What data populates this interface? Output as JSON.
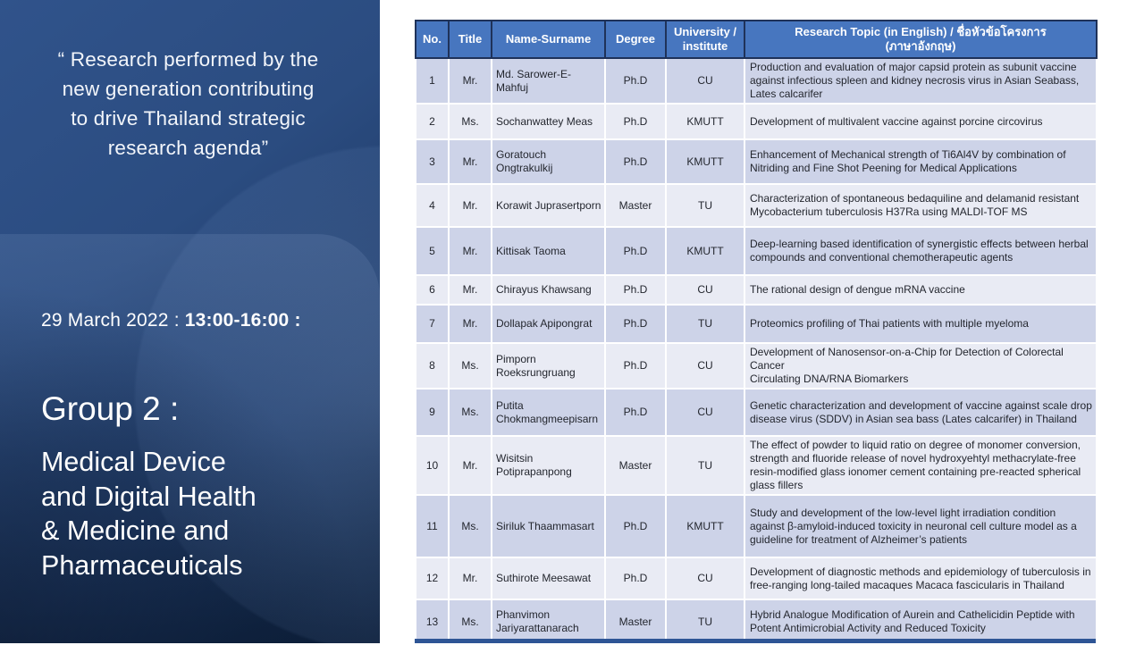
{
  "left_panel": {
    "quote": "“ Research performed by the\nnew generation contributing\nto drive Thailand strategic\nresearch agenda”",
    "date_prefix": "29 March 2022 : ",
    "date_time_bold": "13:00-16:00 :",
    "group_title": "Group 2 :",
    "group_subtitle": "Medical Device\nand Digital Health\n& Medicine and\nPharmaceuticals"
  },
  "table": {
    "headers": [
      "No.",
      "Title",
      "Name-Surname",
      "Degree",
      "University /\ninstitute",
      "Research Topic (in English) / ชื่อหัวข้อโครงการ\n(ภาษาอังกฤษ)"
    ],
    "rows": [
      {
        "no": "1",
        "title": "Mr.",
        "name": "Md. Sarower-E-Mahfuj",
        "degree": "Ph.D",
        "university": "CU",
        "topic": "Production and evaluation of major capsid protein as subunit vaccine against infectious spleen and kidney necrosis virus in Asian Seabass, Lates calcarifer"
      },
      {
        "no": "2",
        "title": "Ms.",
        "name": "Sochanwattey Meas",
        "degree": "Ph.D",
        "university": "KMUTT",
        "topic": "Development of multivalent vaccine against porcine circovirus"
      },
      {
        "no": "3",
        "title": "Mr.",
        "name": "Goratouch Ongtrakulkij",
        "degree": "Ph.D",
        "university": "KMUTT",
        "topic": "Enhancement of Mechanical strength of Ti6Al4V by combination of Nitriding and Fine Shot Peening for Medical Applications"
      },
      {
        "no": "4",
        "title": "Mr.",
        "name": "Korawit Juprasertporn",
        "degree": "Master",
        "university": "TU",
        "topic": "Characterization of spontaneous bedaquiline and delamanid resistant Mycobacterium tuberculosis H37Ra using MALDI-TOF MS"
      },
      {
        "no": "5",
        "title": "Mr.",
        "name": "Kittisak Taoma",
        "degree": "Ph.D",
        "university": "KMUTT",
        "topic": "Deep-learning based identification of synergistic effects between herbal compounds and conventional chemotherapeutic agents"
      },
      {
        "no": "6",
        "title": "Mr.",
        "name": "Chirayus Khawsang",
        "degree": "Ph.D",
        "university": "CU",
        "topic": "The rational design of dengue mRNA vaccine"
      },
      {
        "no": "7",
        "title": "Mr.",
        "name": "Dollapak Apipongrat",
        "degree": "Ph.D",
        "university": "TU",
        "topic": "Proteomics profiling of Thai patients with multiple myeloma"
      },
      {
        "no": "8",
        "title": "Ms.",
        "name": "Pimporn Roeksrungruang",
        "degree": "Ph.D",
        "university": "CU",
        "topic": "Development of Nanosensor-on-a-Chip for Detection of Colorectal Cancer\nCirculating DNA/RNA Biomarkers"
      },
      {
        "no": "9",
        "title": "Ms.",
        "name": "Putita Chokmangmeepisarn",
        "degree": "Ph.D",
        "university": "CU",
        "topic": "Genetic characterization and development of vaccine against scale drop disease virus (SDDV) in Asian sea bass (Lates calcarifer) in Thailand"
      },
      {
        "no": "10",
        "title": "Mr.",
        "name": "Wisitsin Potiprapanpong",
        "degree": "Master",
        "university": "TU",
        "topic": "The effect of powder to liquid ratio on degree of monomer conversion, strength and fluoride release of novel hydroxyehtyl methacrylate-free resin-modified glass ionomer cement containing pre-reacted spherical glass fillers"
      },
      {
        "no": "11",
        "title": "Ms.",
        "name": "Siriluk Thaammasart",
        "degree": "Ph.D",
        "university": "KMUTT",
        "topic": "Study and development of the low-level light irradiation condition against β-amyloid-induced toxicity in neuronal cell culture model as a guideline for treatment of Alzheimer’s patients"
      },
      {
        "no": "12",
        "title": "Mr.",
        "name": "Suthirote Meesawat",
        "degree": "Ph.D",
        "university": "CU",
        "topic": "Development of diagnostic methods and epidemiology of tuberculosis in free-ranging long-tailed macaques Macaca fascicularis in Thailand"
      },
      {
        "no": "13",
        "title": "Ms.",
        "name": "Phanvimon Jariyarattanarach",
        "degree": "Master",
        "university": "TU",
        "topic": "Hybrid Analogue Modification of Aurein and Cathelicidin Peptide with Potent Antimicrobial Activity and Reduced Toxicity"
      }
    ]
  },
  "colors": {
    "header_bg": "#4776BF",
    "header_border": "#1F3259",
    "row_odd": "#CDD3E8",
    "row_even": "#E9EBF4",
    "panel_top": "#30538b",
    "panel_bottom": "#0b1c36",
    "bottom_strip": "#2E5595",
    "text_on_panel": "#ffffff",
    "body_text": "#23262e"
  }
}
